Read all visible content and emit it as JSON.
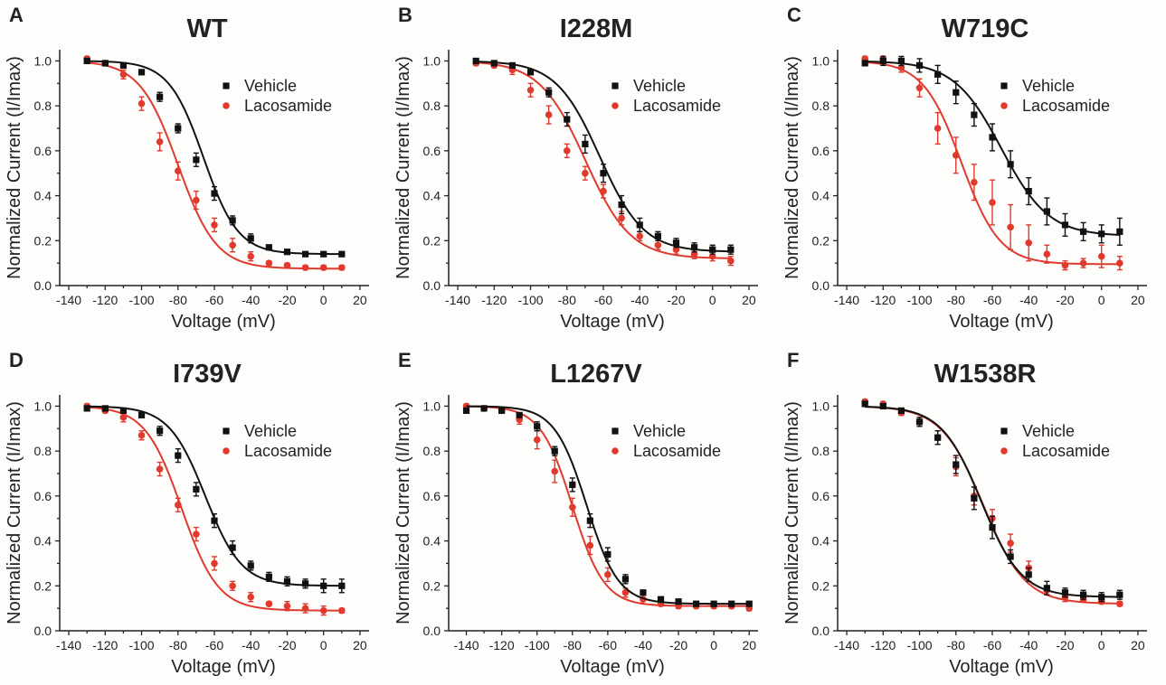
{
  "figure": {
    "background": "#fdfdfb"
  },
  "colors": {
    "Vehicle": "#111111",
    "Lacosamide": "#e03a2f"
  },
  "chart_data": [
    {
      "panel": "A",
      "title": "WT",
      "type": "scatter",
      "xlabel": "Voltage (mV)",
      "ylabel": "Normalized Current (I/Imax)",
      "xlim": [
        -145,
        25
      ],
      "ylim": [
        0.0,
        1.05
      ],
      "xticks": [
        -140,
        -120,
        -100,
        -80,
        -60,
        -40,
        -20,
        0,
        20
      ],
      "yticks": [
        0.0,
        0.2,
        0.4,
        0.6,
        0.8,
        1.0
      ],
      "legend": {
        "position": "top-right",
        "entries": [
          "Vehicle",
          "Lacosamide"
        ]
      },
      "x": [
        -130,
        -120,
        -110,
        -100,
        -90,
        -80,
        -70,
        -60,
        -50,
        -40,
        -30,
        -20,
        -10,
        0,
        10
      ],
      "series": [
        {
          "name": "Vehicle",
          "marker": "square",
          "values": [
            1.0,
            0.99,
            0.98,
            0.95,
            0.84,
            0.7,
            0.56,
            0.41,
            0.29,
            0.21,
            0.17,
            0.15,
            0.14,
            0.14,
            0.14
          ],
          "err": [
            0.01,
            0.01,
            0.01,
            0.01,
            0.02,
            0.02,
            0.03,
            0.03,
            0.02,
            0.02,
            0.01,
            0.01,
            0.01,
            0.01,
            0.01
          ],
          "fit": {
            "bottom": 0.14,
            "v_half": -66,
            "slope": 9.5
          }
        },
        {
          "name": "Lacosamide",
          "marker": "circle",
          "values": [
            1.01,
            0.99,
            0.94,
            0.81,
            0.64,
            0.51,
            0.38,
            0.27,
            0.18,
            0.13,
            0.1,
            0.09,
            0.08,
            0.08,
            0.08
          ],
          "err": [
            0.01,
            0.01,
            0.02,
            0.03,
            0.04,
            0.04,
            0.04,
            0.03,
            0.03,
            0.02,
            0.01,
            0.01,
            0.01,
            0.01,
            0.01
          ],
          "fit": {
            "bottom": 0.075,
            "v_half": -80,
            "slope": 10.5
          }
        }
      ]
    },
    {
      "panel": "B",
      "title": "I228M",
      "type": "scatter",
      "xlabel": "Voltage (mV)",
      "ylabel": "Normalized Current (I/Imax)",
      "xlim": [
        -145,
        25
      ],
      "ylim": [
        0.0,
        1.05
      ],
      "xticks": [
        -140,
        -120,
        -100,
        -80,
        -60,
        -40,
        -20,
        0,
        20
      ],
      "yticks": [
        0.0,
        0.2,
        0.4,
        0.6,
        0.8,
        1.0
      ],
      "legend": {
        "position": "top-right",
        "entries": [
          "Vehicle",
          "Lacosamide"
        ]
      },
      "x": [
        -130,
        -120,
        -110,
        -100,
        -90,
        -80,
        -70,
        -60,
        -50,
        -40,
        -30,
        -20,
        -10,
        0,
        10
      ],
      "series": [
        {
          "name": "Vehicle",
          "marker": "square",
          "values": [
            1.0,
            0.99,
            0.98,
            0.95,
            0.86,
            0.74,
            0.63,
            0.5,
            0.36,
            0.27,
            0.22,
            0.19,
            0.17,
            0.16,
            0.16
          ],
          "err": [
            0.01,
            0.01,
            0.01,
            0.01,
            0.02,
            0.03,
            0.04,
            0.04,
            0.04,
            0.03,
            0.02,
            0.02,
            0.02,
            0.02,
            0.02
          ],
          "fit": {
            "bottom": 0.15,
            "v_half": -62,
            "slope": 12
          }
        },
        {
          "name": "Lacosamide",
          "marker": "circle",
          "values": [
            0.99,
            0.98,
            0.96,
            0.87,
            0.76,
            0.6,
            0.5,
            0.42,
            0.3,
            0.22,
            0.18,
            0.16,
            0.14,
            0.13,
            0.11
          ],
          "err": [
            0.01,
            0.01,
            0.02,
            0.03,
            0.04,
            0.03,
            0.03,
            0.03,
            0.03,
            0.02,
            0.02,
            0.02,
            0.02,
            0.02,
            0.02
          ],
          "fit": {
            "bottom": 0.12,
            "v_half": -70,
            "slope": 12.5
          }
        }
      ]
    },
    {
      "panel": "C",
      "title": "W719C",
      "type": "scatter",
      "xlabel": "Voltage (mV)",
      "ylabel": "Normalized Current (I/Imax)",
      "xlim": [
        -145,
        25
      ],
      "ylim": [
        0.0,
        1.05
      ],
      "xticks": [
        -140,
        -120,
        -100,
        -80,
        -60,
        -40,
        -20,
        0,
        20
      ],
      "yticks": [
        0.0,
        0.2,
        0.4,
        0.6,
        0.8,
        1.0
      ],
      "legend": {
        "position": "top-right",
        "entries": [
          "Vehicle",
          "Lacosamide"
        ]
      },
      "x": [
        -130,
        -120,
        -110,
        -100,
        -90,
        -80,
        -70,
        -60,
        -50,
        -40,
        -30,
        -20,
        -10,
        0,
        10
      ],
      "series": [
        {
          "name": "Vehicle",
          "marker": "square",
          "values": [
            0.99,
            1.0,
            1.0,
            0.98,
            0.94,
            0.86,
            0.76,
            0.66,
            0.54,
            0.42,
            0.33,
            0.27,
            0.24,
            0.23,
            0.24
          ],
          "err": [
            0.01,
            0.02,
            0.02,
            0.03,
            0.04,
            0.05,
            0.05,
            0.06,
            0.06,
            0.06,
            0.06,
            0.05,
            0.04,
            0.04,
            0.06
          ],
          "fit": {
            "bottom": 0.22,
            "v_half": -55,
            "slope": 13
          }
        },
        {
          "name": "Lacosamide",
          "marker": "circle",
          "values": [
            1.01,
            1.01,
            0.97,
            0.88,
            0.7,
            0.58,
            0.46,
            0.37,
            0.26,
            0.19,
            0.14,
            0.09,
            0.1,
            0.13,
            0.1
          ],
          "err": [
            0.01,
            0.01,
            0.02,
            0.04,
            0.07,
            0.08,
            0.08,
            0.1,
            0.1,
            0.08,
            0.04,
            0.02,
            0.02,
            0.05,
            0.03
          ],
          "fit": {
            "bottom": 0.095,
            "v_half": -77,
            "slope": 10.5
          }
        }
      ]
    },
    {
      "panel": "D",
      "title": "I739V",
      "type": "scatter",
      "xlabel": "Voltage (mV)",
      "ylabel": "Normalized Current (I/Imax)",
      "xlim": [
        -145,
        25
      ],
      "ylim": [
        0.0,
        1.05
      ],
      "xticks": [
        -140,
        -120,
        -100,
        -80,
        -60,
        -40,
        -20,
        0,
        20
      ],
      "yticks": [
        0.0,
        0.2,
        0.4,
        0.6,
        0.8,
        1.0
      ],
      "legend": {
        "position": "top-right",
        "entries": [
          "Vehicle",
          "Lacosamide"
        ]
      },
      "x": [
        -130,
        -120,
        -110,
        -100,
        -90,
        -80,
        -70,
        -60,
        -50,
        -40,
        -30,
        -20,
        -10,
        0,
        10
      ],
      "series": [
        {
          "name": "Vehicle",
          "marker": "square",
          "values": [
            0.99,
            0.99,
            0.98,
            0.96,
            0.89,
            0.78,
            0.63,
            0.49,
            0.37,
            0.29,
            0.24,
            0.22,
            0.21,
            0.2,
            0.2
          ],
          "err": [
            0.01,
            0.01,
            0.01,
            0.01,
            0.02,
            0.03,
            0.03,
            0.03,
            0.03,
            0.02,
            0.02,
            0.02,
            0.02,
            0.03,
            0.03
          ],
          "fit": {
            "bottom": 0.2,
            "v_half": -65,
            "slope": 10
          }
        },
        {
          "name": "Lacosamide",
          "marker": "circle",
          "values": [
            1.0,
            0.98,
            0.95,
            0.87,
            0.72,
            0.56,
            0.43,
            0.3,
            0.2,
            0.15,
            0.12,
            0.11,
            0.1,
            0.09,
            0.09
          ],
          "err": [
            0.01,
            0.01,
            0.02,
            0.02,
            0.03,
            0.03,
            0.03,
            0.03,
            0.02,
            0.02,
            0.01,
            0.02,
            0.02,
            0.02,
            0.01
          ],
          "fit": {
            "bottom": 0.09,
            "v_half": -78,
            "slope": 10
          }
        }
      ]
    },
    {
      "panel": "E",
      "title": "L1267V",
      "type": "scatter",
      "xlabel": "Voltage (mV)",
      "ylabel": "Normalized Current (I/Imax)",
      "xlim": [
        -150,
        25
      ],
      "ylim": [
        0.0,
        1.05
      ],
      "xticks": [
        -140,
        -120,
        -100,
        -80,
        -60,
        -40,
        -20,
        0,
        20
      ],
      "yticks": [
        0.0,
        0.2,
        0.4,
        0.6,
        0.8,
        1.0
      ],
      "legend": {
        "position": "top-right",
        "entries": [
          "Vehicle",
          "Lacosamide"
        ]
      },
      "x": [
        -140,
        -130,
        -120,
        -110,
        -100,
        -90,
        -80,
        -70,
        -60,
        -50,
        -40,
        -30,
        -20,
        -10,
        0,
        10,
        20
      ],
      "series": [
        {
          "name": "Vehicle",
          "marker": "square",
          "values": [
            0.98,
            0.99,
            0.98,
            0.96,
            0.91,
            0.8,
            0.65,
            0.49,
            0.34,
            0.23,
            0.17,
            0.14,
            0.13,
            0.12,
            0.12,
            0.12,
            0.12
          ],
          "err": [
            0.01,
            0.01,
            0.01,
            0.01,
            0.02,
            0.02,
            0.03,
            0.03,
            0.03,
            0.02,
            0.01,
            0.01,
            0.01,
            0.01,
            0.01,
            0.01,
            0.01
          ],
          "fit": {
            "bottom": 0.12,
            "v_half": -72,
            "slope": 9
          }
        },
        {
          "name": "Lacosamide",
          "marker": "circle",
          "values": [
            1.0,
            0.99,
            0.98,
            0.94,
            0.85,
            0.71,
            0.55,
            0.38,
            0.25,
            0.17,
            0.14,
            0.12,
            0.11,
            0.11,
            0.11,
            0.11,
            0.1
          ],
          "err": [
            0.01,
            0.01,
            0.01,
            0.02,
            0.04,
            0.05,
            0.04,
            0.04,
            0.03,
            0.02,
            0.02,
            0.01,
            0.01,
            0.01,
            0.01,
            0.01,
            0.01
          ],
          "fit": {
            "bottom": 0.11,
            "v_half": -80,
            "slope": 9
          }
        }
      ]
    },
    {
      "panel": "F",
      "title": "W1538R",
      "type": "scatter",
      "xlabel": "Voltage (mV)",
      "ylabel": "Normalized Current (I/Imax)",
      "xlim": [
        -145,
        25
      ],
      "ylim": [
        0.0,
        1.05
      ],
      "xticks": [
        -140,
        -120,
        -100,
        -80,
        -60,
        -40,
        -20,
        0,
        20
      ],
      "yticks": [
        0.0,
        0.2,
        0.4,
        0.6,
        0.8,
        1.0
      ],
      "legend": {
        "position": "top-right",
        "entries": [
          "Vehicle",
          "Lacosamide"
        ]
      },
      "x": [
        -130,
        -120,
        -110,
        -100,
        -90,
        -80,
        -70,
        -60,
        -50,
        -40,
        -30,
        -20,
        -10,
        0,
        10
      ],
      "series": [
        {
          "name": "Vehicle",
          "marker": "square",
          "values": [
            1.01,
            1.0,
            0.98,
            0.93,
            0.86,
            0.74,
            0.59,
            0.46,
            0.33,
            0.25,
            0.19,
            0.17,
            0.16,
            0.15,
            0.16
          ],
          "err": [
            0.01,
            0.01,
            0.01,
            0.02,
            0.03,
            0.04,
            0.05,
            0.05,
            0.03,
            0.03,
            0.03,
            0.02,
            0.02,
            0.02,
            0.02
          ],
          "fit": {
            "bottom": 0.15,
            "v_half": -66,
            "slope": 11
          }
        },
        {
          "name": "Lacosamide",
          "marker": "circle",
          "values": [
            1.02,
            1.01,
            0.97,
            0.93,
            0.86,
            0.73,
            0.6,
            0.5,
            0.39,
            0.28,
            0.18,
            0.15,
            0.14,
            0.13,
            0.12
          ],
          "err": [
            0.01,
            0.01,
            0.01,
            0.02,
            0.03,
            0.04,
            0.04,
            0.04,
            0.04,
            0.03,
            0.02,
            0.02,
            0.01,
            0.01,
            0.01
          ],
          "fit": {
            "bottom": 0.12,
            "v_half": -65,
            "slope": 11.5
          }
        }
      ]
    }
  ]
}
